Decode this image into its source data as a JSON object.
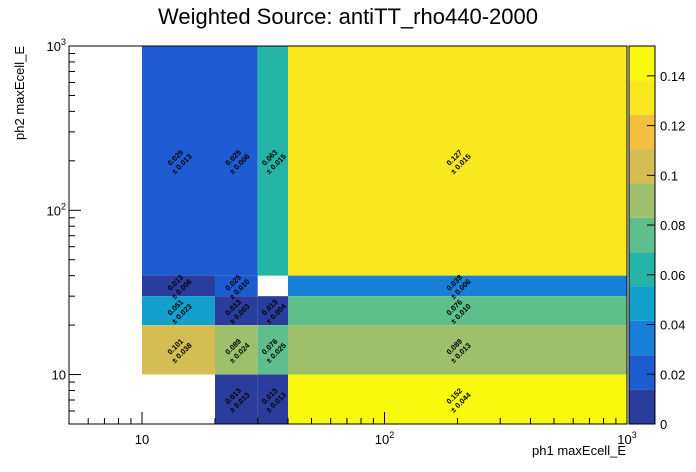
{
  "chart_data": {
    "type": "heatmap",
    "title": "Weighted Source: antiTT_rho440-2000",
    "xlabel": "ph1 maxEcell_E",
    "ylabel": "ph2 maxEcell_E",
    "x_scale": "log",
    "y_scale": "log",
    "xlim": [
      5,
      1000
    ],
    "ylim": [
      5,
      1000
    ],
    "x_ticks": [
      {
        "value": 10,
        "base": "10",
        "exp": ""
      },
      {
        "value": 100,
        "base": "10",
        "exp": "2"
      },
      {
        "value": 1000,
        "base": "10",
        "exp": "3"
      }
    ],
    "y_ticks": [
      {
        "value": 10,
        "base": "10",
        "exp": ""
      },
      {
        "value": 100,
        "base": "10",
        "exp": "2"
      },
      {
        "value": 1000,
        "base": "10",
        "exp": "3"
      }
    ],
    "color_scale": {
      "min": 0,
      "max": 0.152,
      "ticks": [
        "0",
        "0.02",
        "0.04",
        "0.06",
        "0.08",
        "0.1",
        "0.12",
        "0.14"
      ],
      "tick_values": [
        0,
        0.02,
        0.04,
        0.06,
        0.08,
        0.1,
        0.12,
        0.14
      ],
      "colors": [
        "#2a3d9c",
        "#1f5bd0",
        "#1680d8",
        "#13a0cd",
        "#24b4a8",
        "#5ebf8c",
        "#9ebf6c",
        "#d4bd52",
        "#f2bf3e",
        "#f9e81f",
        "#f9f90f"
      ]
    },
    "cells": [
      {
        "x": [
          10,
          20
        ],
        "y": [
          40,
          1000
        ],
        "value": 0.025,
        "label": "0.025",
        "err": "± 0.013"
      },
      {
        "x": [
          20,
          30
        ],
        "y": [
          40,
          1000
        ],
        "value": 0.025,
        "label": "0.025",
        "err": "± 0.006"
      },
      {
        "x": [
          30,
          40
        ],
        "y": [
          40,
          1000
        ],
        "value": 0.063,
        "label": "0.063",
        "err": "± 0.015"
      },
      {
        "x": [
          40,
          1000
        ],
        "y": [
          40,
          1000
        ],
        "value": 0.127,
        "label": "0.127",
        "err": "± 0.015"
      },
      {
        "x": [
          10,
          20
        ],
        "y": [
          30,
          40
        ],
        "value": 0.013,
        "label": "0.013",
        "err": "± 0.006"
      },
      {
        "x": [
          20,
          30
        ],
        "y": [
          30,
          40
        ],
        "value": 0.025,
        "label": "0.025",
        "err": "± 0.010"
      },
      {
        "x": [
          40,
          1000
        ],
        "y": [
          30,
          40
        ],
        "value": 0.038,
        "label": "0.038",
        "err": "± 0.006"
      },
      {
        "x": [
          10,
          20
        ],
        "y": [
          20,
          30
        ],
        "value": 0.051,
        "label": "0.051",
        "err": "± 0.023"
      },
      {
        "x": [
          20,
          30
        ],
        "y": [
          20,
          30
        ],
        "value": 0.013,
        "label": "0.013",
        "err": "± 0.003"
      },
      {
        "x": [
          30,
          40
        ],
        "y": [
          20,
          30
        ],
        "value": 0.013,
        "label": "0.013",
        "err": "± 0.004"
      },
      {
        "x": [
          40,
          1000
        ],
        "y": [
          20,
          30
        ],
        "value": 0.076,
        "label": "0.076",
        "err": "± 0.010"
      },
      {
        "x": [
          10,
          20
        ],
        "y": [
          10,
          20
        ],
        "value": 0.101,
        "label": "0.101",
        "err": "± 0.038"
      },
      {
        "x": [
          20,
          30
        ],
        "y": [
          10,
          20
        ],
        "value": 0.089,
        "label": "0.089",
        "err": "± 0.024"
      },
      {
        "x": [
          30,
          40
        ],
        "y": [
          10,
          20
        ],
        "value": 0.076,
        "label": "0.076",
        "err": "± 0.025"
      },
      {
        "x": [
          40,
          1000
        ],
        "y": [
          10,
          20
        ],
        "value": 0.089,
        "label": "0.089",
        "err": "± 0.013"
      },
      {
        "x": [
          20,
          30
        ],
        "y": [
          5,
          10
        ],
        "value": 0.013,
        "label": "0.013",
        "err": "± 0.013"
      },
      {
        "x": [
          30,
          40
        ],
        "y": [
          5,
          10
        ],
        "value": 0.013,
        "label": "0.013",
        "err": "± 0.013"
      },
      {
        "x": [
          40,
          1000
        ],
        "y": [
          5,
          10
        ],
        "value": 0.152,
        "label": "0.152",
        "err": "± 0.044"
      }
    ]
  }
}
